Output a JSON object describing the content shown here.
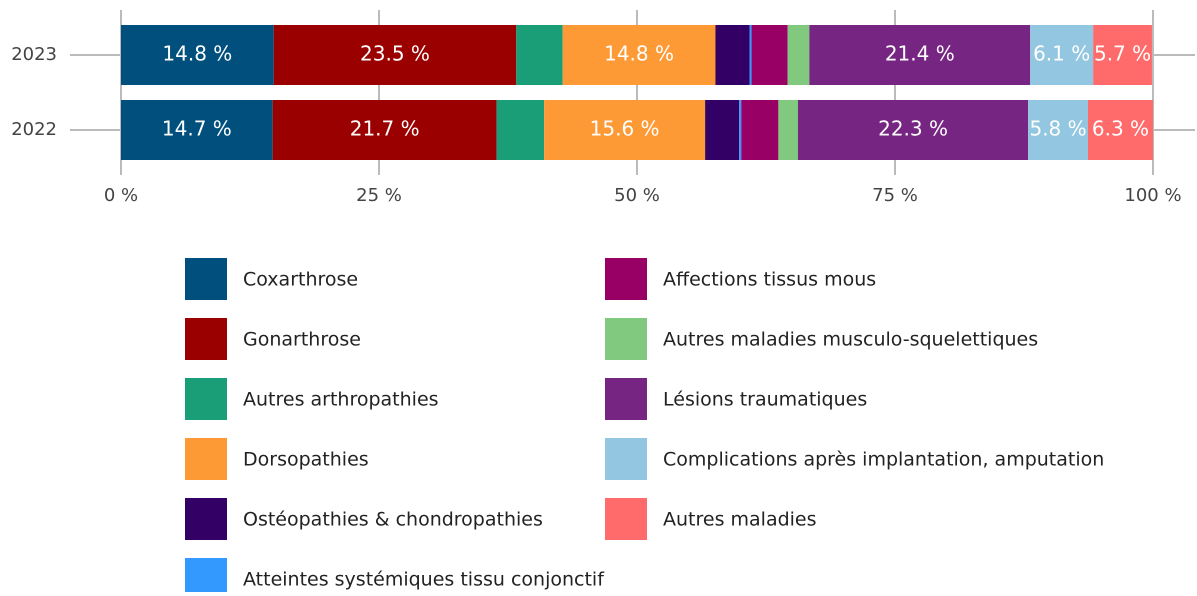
{
  "chart_data": {
    "type": "stacked-barh",
    "categories": [
      "2023",
      "2022"
    ],
    "xlim": [
      0,
      100
    ],
    "xticks": [
      {
        "value": 0,
        "label": "0 %"
      },
      {
        "value": 25,
        "label": "25 %"
      },
      {
        "value": 50,
        "label": "50 %"
      },
      {
        "value": 75,
        "label": "75 %"
      },
      {
        "value": 100,
        "label": "100 %"
      }
    ],
    "grid": true,
    "legend": "bottom",
    "series": [
      {
        "name": "Coxarthrose",
        "color": "#004f7c",
        "values": [
          14.8,
          14.7
        ],
        "value_labels": [
          "14.8 %",
          "14.7 %"
        ]
      },
      {
        "name": "Gonarthrose",
        "color": "#9b0000",
        "values": [
          23.5,
          21.7
        ],
        "value_labels": [
          "23.5 %",
          "21.7 %"
        ]
      },
      {
        "name": "Autres arthropathies",
        "color": "#1a9e77",
        "values": [
          4.5,
          4.6
        ]
      },
      {
        "name": "Dorsopathies",
        "color": "#fd9a36",
        "values": [
          14.8,
          15.6
        ],
        "value_labels": [
          "14.8 %",
          "15.6 %"
        ]
      },
      {
        "name": "Ostéopathies & chondropathies",
        "color": "#330066",
        "values": [
          3.3,
          3.3
        ]
      },
      {
        "name": "Atteintes systémiques tissu conjonctif",
        "color": "#3399ff",
        "values": [
          0.2,
          0.2
        ]
      },
      {
        "name": "Affections tissus mous",
        "color": "#990066",
        "values": [
          3.5,
          3.6
        ]
      },
      {
        "name": "Autres maladies musculo-squelettiques",
        "color": "#80c97e",
        "values": [
          2.1,
          1.9
        ]
      },
      {
        "name": "Lésions traumatiques",
        "color": "#772583",
        "values": [
          21.4,
          22.3
        ],
        "value_labels": [
          "21.4 %",
          "22.3 %"
        ]
      },
      {
        "name": "Complications après implantation, amputation",
        "color": "#93c6e0",
        "values": [
          6.1,
          5.8
        ],
        "value_labels": [
          "6.1 %",
          "5.8 %"
        ]
      },
      {
        "name": "Autres maladies",
        "color": "#ff6b6b",
        "values": [
          5.7,
          6.3
        ],
        "value_labels": [
          "5.7 %",
          "6.3 %"
        ]
      }
    ]
  }
}
